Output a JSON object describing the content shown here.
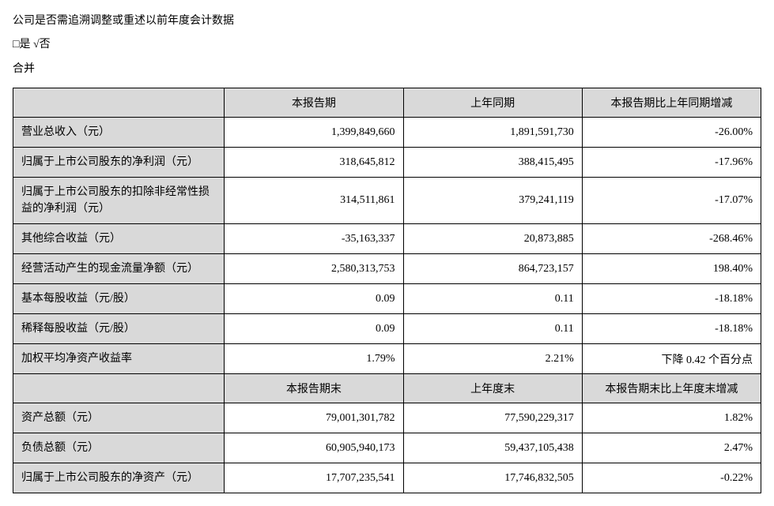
{
  "intro": {
    "line1": "公司是否需追溯调整或重述以前年度会计数据",
    "line2": "□是   √否",
    "line3": "合并"
  },
  "table1": {
    "headers": {
      "h1": "本报告期",
      "h2": "上年同期",
      "h3": "本报告期比上年同期增减"
    },
    "rows": [
      {
        "label": "营业总收入（元）",
        "c1": "1,399,849,660",
        "c2": "1,891,591,730",
        "c3": "-26.00%"
      },
      {
        "label": "归属于上市公司股东的净利润（元）",
        "c1": "318,645,812",
        "c2": "388,415,495",
        "c3": "-17.96%"
      },
      {
        "label": "归属于上市公司股东的扣除非经常性损益的净利润（元）",
        "c1": "314,511,861",
        "c2": "379,241,119",
        "c3": "-17.07%"
      },
      {
        "label": "其他综合收益（元）",
        "c1": "-35,163,337",
        "c2": "20,873,885",
        "c3": "-268.46%"
      },
      {
        "label": "经营活动产生的现金流量净额（元）",
        "c1": "2,580,313,753",
        "c2": "864,723,157",
        "c3": "198.40%"
      },
      {
        "label": "基本每股收益（元/股）",
        "c1": "0.09",
        "c2": "0.11",
        "c3": "-18.18%"
      },
      {
        "label": "稀释每股收益（元/股）",
        "c1": "0.09",
        "c2": "0.11",
        "c3": "-18.18%"
      },
      {
        "label": "加权平均净资产收益率",
        "c1": "1.79%",
        "c2": "2.21%",
        "c3": "下降 0.42 个百分点"
      }
    ]
  },
  "table2": {
    "headers": {
      "h1": "本报告期末",
      "h2": "上年度末",
      "h3": "本报告期末比上年度末增减"
    },
    "rows": [
      {
        "label": "资产总额（元）",
        "c1": "79,001,301,782",
        "c2": "77,590,229,317",
        "c3": "1.82%"
      },
      {
        "label": "负债总额（元）",
        "c1": "60,905,940,173",
        "c2": "59,437,105,438",
        "c3": "2.47%"
      },
      {
        "label": "归属于上市公司股东的净资产（元）",
        "c1": "17,707,235,541",
        "c2": "17,746,832,505",
        "c3": "-0.22%"
      }
    ]
  }
}
